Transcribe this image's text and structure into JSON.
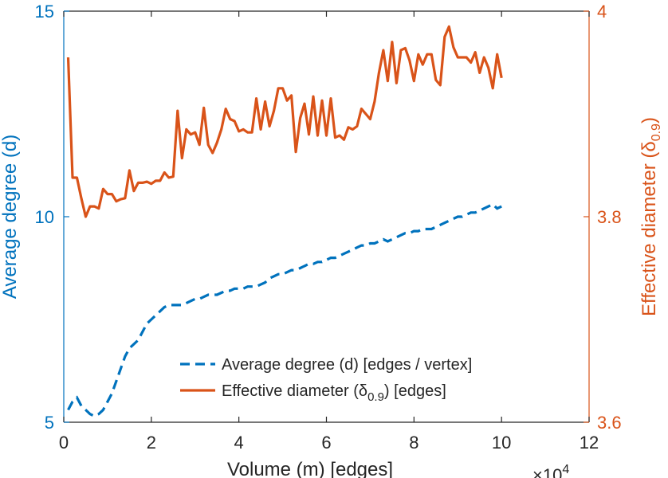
{
  "chart_data": {
    "type": "line",
    "dual_axis": true,
    "x_ticks": [
      "0",
      "2",
      "4",
      "6",
      "8",
      "10",
      "12"
    ],
    "x_exponent": "×10",
    "x_exponent_power": "4",
    "xlabel": "Volume (m) [edges]",
    "xlim": [
      0,
      12
    ],
    "left_axis": {
      "label": "Average degree (d)",
      "ylim": [
        5,
        15
      ],
      "ticks": [
        "5",
        "10",
        "15"
      ],
      "color": "#0072BD"
    },
    "right_axis": {
      "label": "Effective diameter (δ",
      "label_sub": "0.9",
      "label_close": ")",
      "ylim": [
        3.6,
        4.0
      ],
      "ticks": [
        "3.6",
        "3.8",
        "4"
      ],
      "color": "#D95319"
    },
    "grid": false,
    "legend_position": "lower-right",
    "series": [
      {
        "name": "Average degree (d) [edges / vertex]",
        "axis": "left",
        "style": "dashed",
        "color": "#0072BD",
        "x": [
          0.1,
          0.2,
          0.3,
          0.4,
          0.5,
          0.6,
          0.7,
          0.8,
          0.9,
          1.0,
          1.1,
          1.2,
          1.3,
          1.4,
          1.5,
          1.6,
          1.7,
          1.8,
          1.9,
          2.0,
          2.1,
          2.2,
          2.3,
          2.4,
          2.5,
          2.6,
          2.7,
          2.8,
          2.9,
          3.0,
          3.1,
          3.2,
          3.3,
          3.4,
          3.5,
          3.6,
          3.7,
          3.8,
          3.9,
          4.0,
          4.1,
          4.2,
          4.3,
          4.4,
          4.5,
          4.6,
          4.7,
          4.8,
          4.9,
          5.0,
          5.1,
          5.2,
          5.3,
          5.4,
          5.5,
          5.6,
          5.7,
          5.8,
          5.9,
          6.0,
          6.1,
          6.2,
          6.3,
          6.4,
          6.5,
          6.6,
          6.7,
          6.8,
          6.9,
          7.0,
          7.1,
          7.2,
          7.3,
          7.4,
          7.5,
          7.6,
          7.7,
          7.8,
          7.9,
          8.0,
          8.1,
          8.2,
          8.3,
          8.4,
          8.5,
          8.6,
          8.7,
          8.8,
          8.9,
          9.0,
          9.1,
          9.2,
          9.3,
          9.4,
          9.5,
          9.6,
          9.7,
          9.8,
          9.9,
          10.0
        ],
        "values": [
          5.3,
          5.5,
          5.6,
          5.4,
          5.3,
          5.2,
          5.15,
          5.2,
          5.3,
          5.5,
          5.7,
          6.0,
          6.3,
          6.6,
          6.8,
          6.9,
          7.0,
          7.2,
          7.4,
          7.5,
          7.6,
          7.7,
          7.8,
          7.85,
          7.85,
          7.85,
          7.85,
          7.9,
          7.95,
          8.0,
          8.0,
          8.05,
          8.1,
          8.1,
          8.1,
          8.15,
          8.2,
          8.2,
          8.25,
          8.25,
          8.25,
          8.3,
          8.3,
          8.3,
          8.35,
          8.4,
          8.5,
          8.55,
          8.6,
          8.6,
          8.65,
          8.7,
          8.7,
          8.75,
          8.8,
          8.85,
          8.85,
          8.9,
          8.9,
          8.95,
          9.0,
          9.0,
          9.05,
          9.1,
          9.15,
          9.2,
          9.25,
          9.3,
          9.3,
          9.35,
          9.35,
          9.4,
          9.45,
          9.4,
          9.45,
          9.5,
          9.55,
          9.6,
          9.6,
          9.65,
          9.65,
          9.7,
          9.7,
          9.7,
          9.75,
          9.8,
          9.85,
          9.9,
          9.95,
          10.0,
          10.0,
          10.05,
          10.1,
          10.1,
          10.15,
          10.2,
          10.25,
          10.3,
          10.2,
          10.25
        ]
      },
      {
        "name": "Effective diameter (δ",
        "name_sub": "0.9",
        "name_suffix": ") [edges]",
        "axis": "right",
        "style": "solid",
        "color": "#D95319",
        "x": [
          0.1,
          0.2,
          0.3,
          0.4,
          0.5,
          0.6,
          0.7,
          0.8,
          0.9,
          1.0,
          1.1,
          1.2,
          1.3,
          1.4,
          1.5,
          1.6,
          1.7,
          1.8,
          1.9,
          2.0,
          2.1,
          2.2,
          2.3,
          2.4,
          2.5,
          2.6,
          2.7,
          2.8,
          2.9,
          3.0,
          3.1,
          3.2,
          3.3,
          3.4,
          3.5,
          3.6,
          3.7,
          3.8,
          3.9,
          4.0,
          4.1,
          4.2,
          4.3,
          4.4,
          4.5,
          4.6,
          4.7,
          4.8,
          4.9,
          5.0,
          5.1,
          5.2,
          5.3,
          5.4,
          5.5,
          5.6,
          5.7,
          5.8,
          5.9,
          6.0,
          6.1,
          6.2,
          6.3,
          6.4,
          6.5,
          6.6,
          6.7,
          6.8,
          6.9,
          7.0,
          7.1,
          7.2,
          7.3,
          7.4,
          7.5,
          7.6,
          7.7,
          7.8,
          7.9,
          8.0,
          8.1,
          8.2,
          8.3,
          8.4,
          8.5,
          8.6,
          8.7,
          8.8,
          8.9,
          9.0,
          9.1,
          9.2,
          9.3,
          9.4,
          9.5,
          9.6,
          9.7,
          9.8,
          9.9,
          10.0
        ],
        "values": [
          3.955,
          3.838,
          3.838,
          3.818,
          3.8,
          3.81,
          3.81,
          3.808,
          3.827,
          3.822,
          3.822,
          3.815,
          3.817,
          3.818,
          3.845,
          3.825,
          3.833,
          3.833,
          3.834,
          3.832,
          3.835,
          3.835,
          3.843,
          3.838,
          3.839,
          3.903,
          3.857,
          3.885,
          3.88,
          3.882,
          3.87,
          3.906,
          3.87,
          3.862,
          3.872,
          3.885,
          3.905,
          3.895,
          3.893,
          3.883,
          3.885,
          3.882,
          3.882,
          3.915,
          3.885,
          3.912,
          3.888,
          3.903,
          3.925,
          3.925,
          3.913,
          3.918,
          3.863,
          3.896,
          3.91,
          3.88,
          3.917,
          3.879,
          3.913,
          3.879,
          3.915,
          3.877,
          3.879,
          3.875,
          3.887,
          3.885,
          3.888,
          3.905,
          3.9,
          3.895,
          3.912,
          3.94,
          3.962,
          3.932,
          3.97,
          3.93,
          3.962,
          3.964,
          3.952,
          3.932,
          3.958,
          3.948,
          3.958,
          3.958,
          3.933,
          3.928,
          3.975,
          3.985,
          3.965,
          3.955,
          3.955,
          3.955,
          3.95,
          3.96,
          3.94,
          3.955,
          3.945,
          3.925,
          3.958,
          3.935
        ]
      }
    ]
  }
}
